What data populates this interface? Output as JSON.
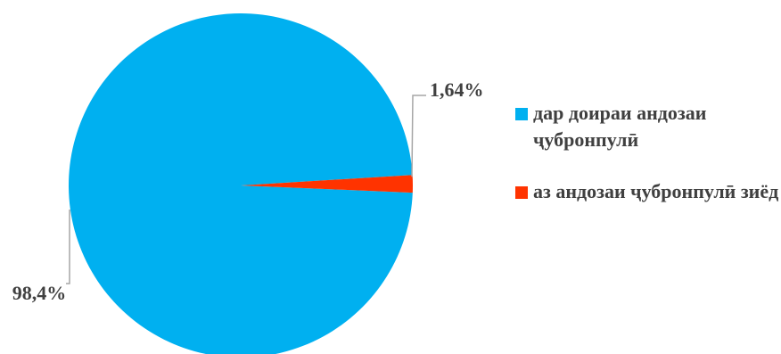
{
  "chart_data": {
    "type": "pie",
    "slices": [
      {
        "label": "дар доираи андозаи ҷубронпулӣ",
        "value": 98.4,
        "display": "98,4%",
        "color": "#00B0F0"
      },
      {
        "label": "аз андозаи ҷубронпулӣ зиёд",
        "value": 1.64,
        "display": "1,64%",
        "color": "#FF3300"
      }
    ],
    "legend": {
      "position": "right"
    },
    "leader_line_color": "#A6A6A6"
  }
}
